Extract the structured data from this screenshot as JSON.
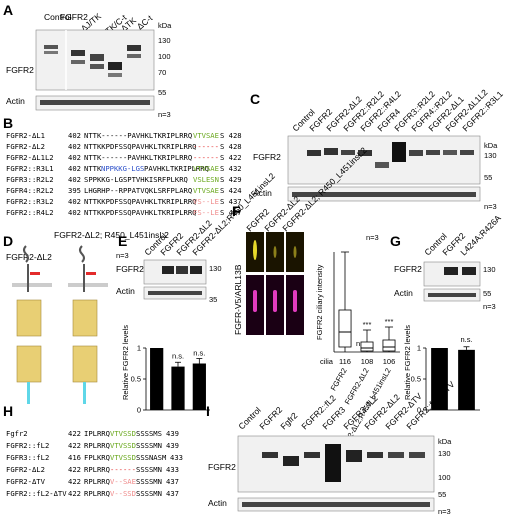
{
  "panel_letters": [
    "A",
    "B",
    "C",
    "D",
    "E",
    "F",
    "G",
    "H",
    "I"
  ],
  "colors": {
    "green": "#6aa81e",
    "red": "#e32b2b",
    "blue": "#2b4fc9",
    "pink": "#ef8c8c",
    "domain": "#e8cf74",
    "tm": "#5fd7e8"
  },
  "A": {
    "lanes": [
      "Control",
      "FGFR2",
      "ΔJ/TK",
      "ΔTK/C-t",
      "ΔTK",
      "ΔC-t"
    ],
    "blot_label": "FGFR2",
    "actin_label": "Actin",
    "n": "n=3",
    "kda_label": "kDa",
    "markers": [
      "130",
      "100",
      "70",
      "55"
    ]
  },
  "B": {
    "rows": [
      {
        "name": "FGFR2-ΔL1",
        "start": "402",
        "seq": "NTTK------PAVHKLTKRIPLRRQ",
        "tail": "VTVSAE",
        "end": "S 428",
        "tail_color": "green"
      },
      {
        "name": "FGFR2-ΔL2",
        "start": "402",
        "seq": "NTTKKPDFSSQPAVHKLTKRIPLRRQ",
        "tail": "------",
        "end": "S 428",
        "tail_color": "red"
      },
      {
        "name": "FGFR2-ΔL1L2",
        "start": "402",
        "seq": "NTTK------PAVHKLTKRIPLRRQ",
        "tail": "------",
        "end": "S 422",
        "tail_color": "red"
      },
      {
        "name": "FGFR2::R3L1",
        "start": "402",
        "seq": "NTTK",
        "mid": "NPPKKG-LGS",
        "seq2": "PAVHKLTKRIPLRRQ",
        "tail": "VTVSAE",
        "end": "S 432",
        "tail_color": "green"
      },
      {
        "name": "FGFR3::R2L2",
        "start": "402",
        "seq": "SPPKKG-LGSPTVHKISRFPLKRQ",
        "tail": "VSLESN",
        "end": "S 429",
        "tail_color": "green"
      },
      {
        "name": "FGFR4::R2L2",
        "start": "395",
        "seq": "LHGRHP--RPPATVQKLSRFPLARQ",
        "tail": "VTVSAE",
        "end": "S 424",
        "tail_color": "green"
      },
      {
        "name": "FGFR2::R3L2",
        "start": "402",
        "seq": "NTTKKPDFSSQPAVHKLTKRIPLRRQ",
        "tail": "VS--LE",
        "end": "S 437",
        "tail_color": "pink"
      },
      {
        "name": "FGFR2::R4L2",
        "start": "402",
        "seq": "NTTKKPDFSSQPAVHKLTKRIPLRRQ",
        "tail": "FS--LE",
        "end": "S 437",
        "tail_color": "pink"
      }
    ]
  },
  "C": {
    "lanes": [
      "Control",
      "FGFR2",
      "FGFR2-ΔL2",
      "FGFR2::R2L2",
      "FGFR2::R4L2",
      "FGFR4",
      "FGFR3::R2L2",
      "FGFR4::R2L2",
      "FGFR2-ΔL1",
      "FGFR2-ΔL1L2",
      "FGFR2::R3L1"
    ],
    "blot_label": "FGFR2",
    "actin_label": "Actin",
    "n": "n=3",
    "kda_label": "kDa",
    "markers": [
      "130",
      "55"
    ]
  },
  "D": {
    "labels": [
      "FGFR2-ΔL2",
      "FGFR2-ΔL2;\nR450_L451insL2"
    ]
  },
  "E": {
    "lanes": [
      "Control",
      "FGFR2",
      "FGFR2-ΔL2",
      "FGFR2-ΔL2;R450_L451insL2"
    ],
    "n": "n=3",
    "blot_label": "FGFR2",
    "actin_label": "Actin",
    "markers": [
      "130",
      "35"
    ]
  },
  "E_chart_data": {
    "type": "bar",
    "categories": [
      "FGFR2",
      "FGFR2-ΔL2",
      "FGFR2-ΔL2;R450_L451insL2"
    ],
    "values": [
      1.0,
      0.7,
      0.75
    ],
    "errors": [
      0,
      0.07,
      0.08
    ],
    "significance": [
      "",
      "n.s.",
      "n.s."
    ],
    "ylabel": "Relative FGFR2 levels",
    "ylim": [
      0,
      1
    ],
    "yticks": [
      "0",
      "0.5",
      "1"
    ]
  },
  "F": {
    "columns": [
      "FGFR2",
      "FGFR2-ΔL2",
      "FGFR2-ΔL2;\nR450_L451insL2"
    ],
    "channel_label": "FGFR-V5/ARL13B",
    "n": "n=3"
  },
  "F_chart_data": {
    "type": "box",
    "categories": [
      "FGFR2",
      "FGFR2-ΔL2",
      "FGFR2-ΔL2;R450_L451insL2"
    ],
    "cilia_counts": [
      "116",
      "108",
      "106"
    ],
    "cilia_label": "cilia",
    "significance": [
      "",
      "***",
      "***"
    ],
    "ns_label": "n.s.",
    "ylabel": "FGFR2 ciliary intensity",
    "boxes": [
      {
        "min": 0,
        "q1": 0.05,
        "median": 0.2,
        "q3": 0.42,
        "max": 1.0
      },
      {
        "min": 0,
        "q1": 0.01,
        "median": 0.04,
        "q3": 0.1,
        "max": 0.22
      },
      {
        "min": 0,
        "q1": 0.01,
        "median": 0.05,
        "q3": 0.12,
        "max": 0.25
      }
    ]
  },
  "G": {
    "lanes": [
      "Control",
      "FGFR2",
      "L424A;R426A"
    ],
    "blot_label": "FGFR2",
    "actin_label": "Actin",
    "n": "n=3",
    "markers": [
      "130",
      "55"
    ]
  },
  "G_chart_data": {
    "type": "bar",
    "categories": [
      "FGFR2",
      "L424A;R426A"
    ],
    "values": [
      1.0,
      0.97
    ],
    "errors": [
      0,
      0.05
    ],
    "significance": [
      "",
      "n.s."
    ],
    "ylabel": "Relative FGFR2 levels",
    "ylim": [
      0,
      1
    ],
    "yticks": [
      "0",
      "0.5",
      "1"
    ]
  },
  "H": {
    "rows": [
      {
        "name": "Fgfr2",
        "start": "422",
        "seq": "IPLRRQ",
        "tail": "VTVSSD",
        "rest": "SSSSMS",
        "end": "439",
        "tail_color": "green"
      },
      {
        "name": "FGFR2::fL2",
        "start": "422",
        "seq": "RPLRRQ",
        "tail": "VTVSSD",
        "rest": "SSSSMN",
        "end": "439",
        "tail_color": "green"
      },
      {
        "name": "FGFR3::fL2",
        "start": "416",
        "seq": "FPLKRQ",
        "tail": "VTVSSD",
        "rest": "SSSNASM",
        "end": "433",
        "tail_color": "green"
      },
      {
        "name": "FGFR2-ΔL2",
        "start": "422",
        "seq": "RPLRRQ",
        "tail": "------",
        "rest": "SSSSMN",
        "end": "433",
        "tail_color": "red"
      },
      {
        "name": "FGFR2-ΔTV",
        "start": "422",
        "seq": "RPLRRQ",
        "tail": "V--SAE",
        "rest": "SSSSMN",
        "end": "437",
        "tail_color": "pink"
      },
      {
        "name": "FGFR2::fL2-ΔTV",
        "start": "422",
        "seq": "RPLRRQ",
        "tail": "V--SSD",
        "rest": "SSSSMN",
        "end": "437",
        "tail_color": "pink"
      }
    ]
  },
  "I": {
    "lanes": [
      "Control",
      "FGFR2",
      "Fgfr2",
      "FGFR2::fL2",
      "FGFR3",
      "FGFR3::fL2",
      "FGFR2-ΔL2",
      "FGFR2-ΔTV",
      "FGFR2::fL2-ΔTV"
    ],
    "blot_label": "FGFR2",
    "actin_label": "Actin",
    "n": "n=3",
    "kda_label": "kDa",
    "markers": [
      "130",
      "100",
      "55"
    ]
  }
}
